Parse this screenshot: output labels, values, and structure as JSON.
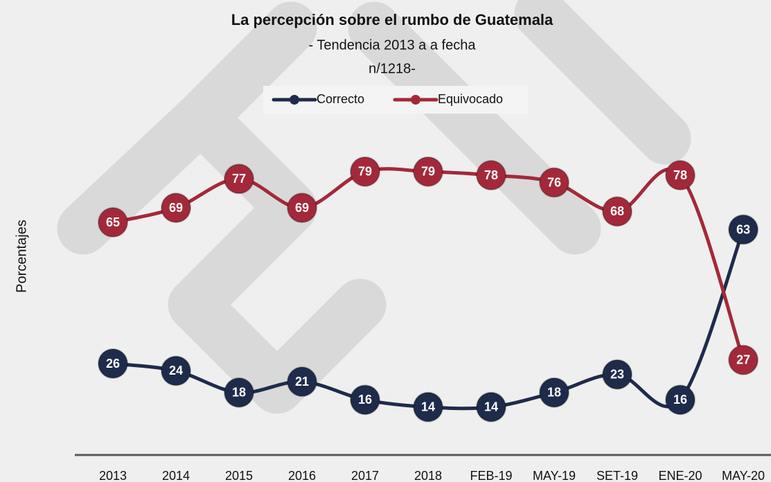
{
  "chart_data": {
    "type": "line",
    "title": "La percepción sobre el rumbo de Guatemala",
    "subtitle": [
      "- Tendencia 2013 a a fecha",
      "n/1218-"
    ],
    "y_axis_label": "Porcentajes",
    "categories": [
      "2013",
      "2014",
      "2015",
      "2016",
      "2017",
      "2018",
      "FEB-19",
      "MAY-19",
      "SET-19",
      "ENE-20",
      "MAY-20"
    ],
    "series": [
      {
        "name": "Correcto",
        "color": "#1f2b4a",
        "values": [
          26,
          24,
          18,
          21,
          16,
          14,
          14,
          18,
          23,
          16,
          63
        ]
      },
      {
        "name": "Equivocado",
        "color": "#a3293a",
        "values": [
          65,
          69,
          77,
          69,
          79,
          79,
          78,
          76,
          68,
          78,
          27
        ]
      }
    ],
    "ylim": [
      0,
      100
    ],
    "legend": "top"
  }
}
